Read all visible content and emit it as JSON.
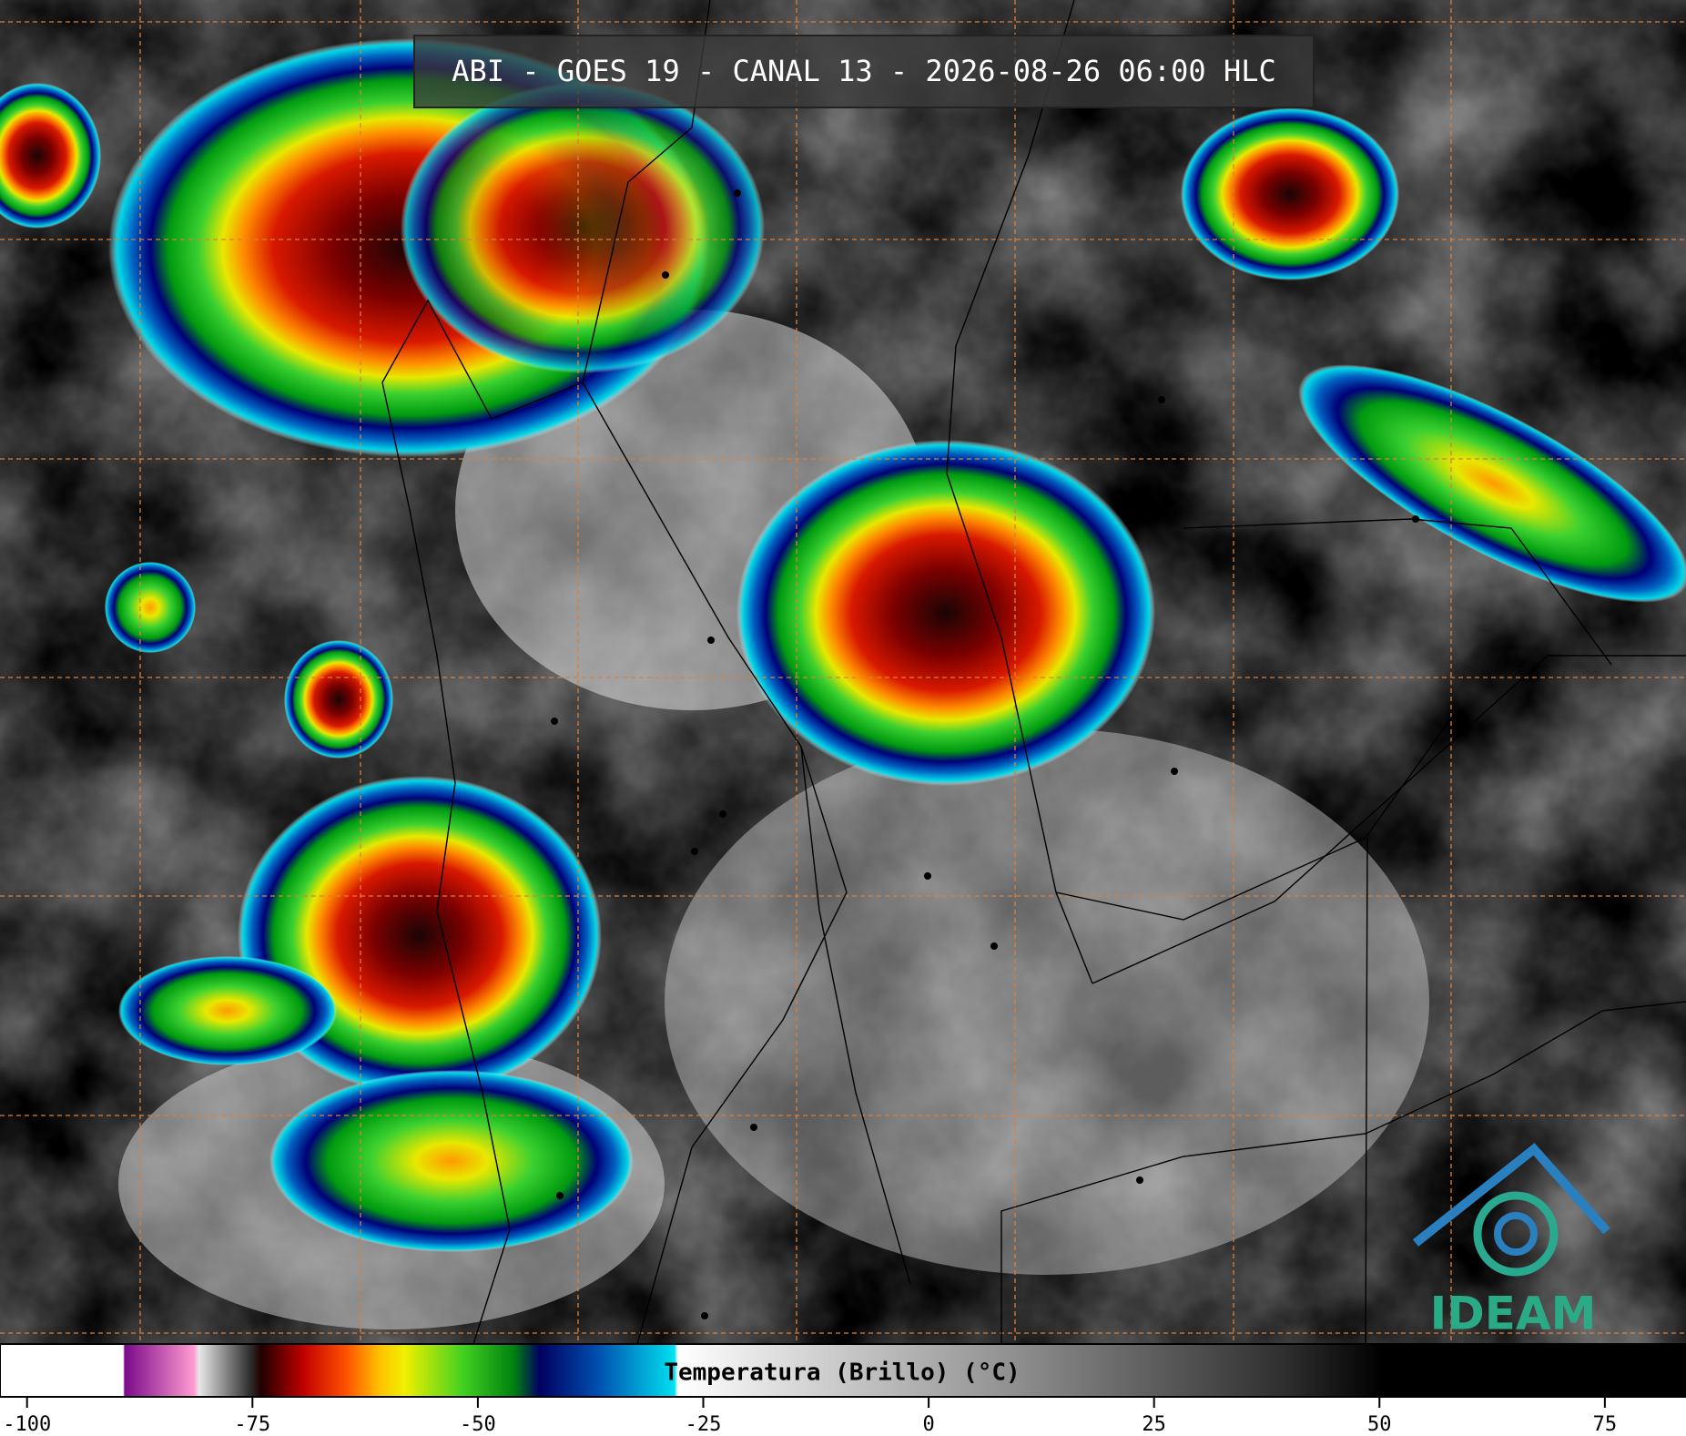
{
  "header": {
    "title": "ABI - GOES 19 - CANAL 13 - 2026-08-26 06:00 HLC"
  },
  "colorbar": {
    "label": "Temperatura (Brillo) (°C)",
    "lim": [
      -103,
      84
    ],
    "ticks": [
      -100,
      -75,
      -50,
      -25,
      0,
      25,
      50,
      75
    ]
  },
  "logo": {
    "text": "IDEAM"
  }
}
